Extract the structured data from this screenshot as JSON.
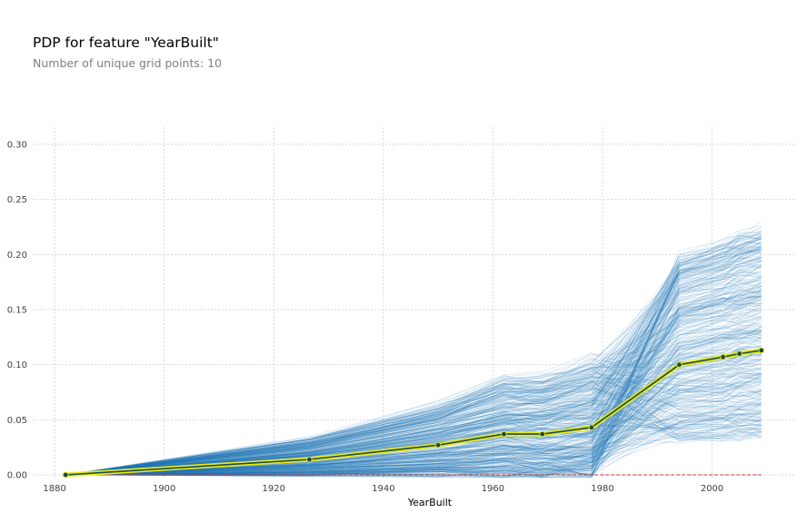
{
  "title": "PDP for feature \"YearBuilt\"",
  "subtitle": "Number of unique grid points: 10",
  "chart_data": {
    "type": "line",
    "title": "PDP for feature \"YearBuilt\"",
    "subtitle": "Number of unique grid points: 10",
    "xlabel": "YearBuilt",
    "ylabel": "",
    "xlim": [
      1876,
      2015
    ],
    "ylim": [
      0,
      0.3
    ],
    "xticks": [
      "1880",
      "1900",
      "1920",
      "1940",
      "1960",
      "1980",
      "2000"
    ],
    "yticks": [
      "0.00",
      "0.05",
      "0.10",
      "0.15",
      "0.20",
      "0.25",
      "0.30"
    ],
    "grid": true,
    "legend": "none",
    "series": [
      {
        "values": [
          {
            "x": 1882,
            "y": 0.0
          },
          {
            "x": 1926.5,
            "y": 0.014
          },
          {
            "x": 1950,
            "y": 0.027
          },
          {
            "x": 1962,
            "y": 0.037
          },
          {
            "x": 1969,
            "y": 0.037
          },
          {
            "x": 1978,
            "y": 0.043
          },
          {
            "x": 1994,
            "y": 0.1
          },
          {
            "x": 2002,
            "y": 0.107
          },
          {
            "x": 2005,
            "y": 0.11
          },
          {
            "x": 2009,
            "y": 0.113
          }
        ]
      }
    ],
    "baseline": 0.0
  },
  "colors": {
    "pdp_line": "#1a4a4a",
    "pdp_halo": "#e8e81a",
    "ice_lines": "#1f77b4",
    "baseline": "#cc3333",
    "grid": "#c8c8c8"
  }
}
